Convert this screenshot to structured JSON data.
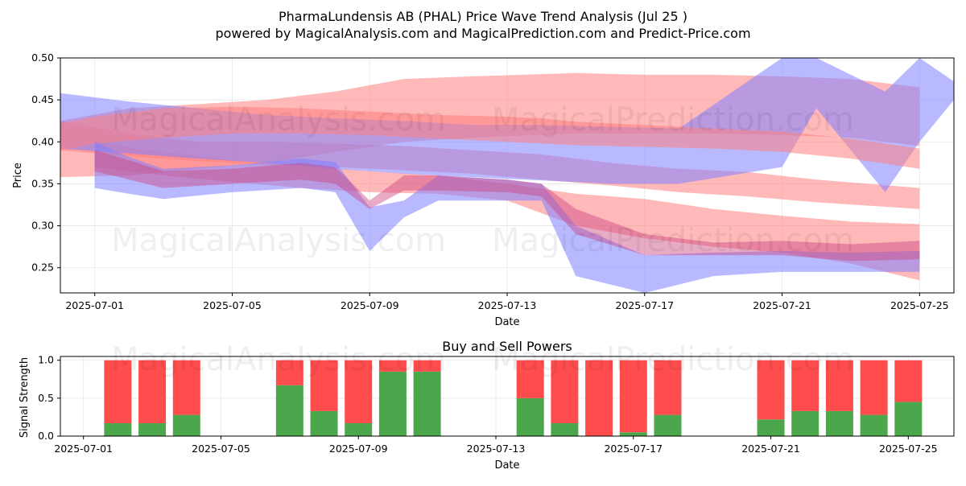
{
  "header": {
    "title": "PharmaLundensis AB (PHAL) Price Wave Trend Analysis (Jul 25 )",
    "subtitle": "powered by MagicalAnalysis.com and MagicalPrediction.com and Predict-Price.com"
  },
  "watermarks": [
    "MagicalAnalysis.com",
    "MagicalPrediction.com"
  ],
  "colors": {
    "buy": "#4ca64c",
    "sell": "#ff4d4d",
    "wave_red": "#ff8080",
    "wave_blue": "#7f7fff"
  },
  "chart_data": [
    {
      "type": "area",
      "title": "",
      "xlabel": "Date",
      "ylabel": "Price",
      "x_ticks": [
        "2025-07-01",
        "2025-07-05",
        "2025-07-09",
        "2025-07-13",
        "2025-07-17",
        "2025-07-21",
        "2025-07-25"
      ],
      "y_ticks": [
        "0.25",
        "0.30",
        "0.35",
        "0.40",
        "0.45",
        "0.50"
      ],
      "xlim": [
        "2025-06-30",
        "2025-07-26"
      ],
      "ylim": [
        0.22,
        0.5
      ],
      "grid": true,
      "series": [
        {
          "color": "#ff8080",
          "upper": [
            0.425,
            0.41,
            0.4,
            0.4,
            0.398,
            0.395,
            0.39,
            0.385,
            0.375,
            0.368,
            0.364,
            0.355,
            0.345
          ],
          "lower": [
            0.39,
            0.383,
            0.377,
            0.373,
            0.37,
            0.366,
            0.362,
            0.355,
            0.348,
            0.34,
            0.335,
            0.328,
            0.32
          ],
          "x": [
            "2025-06-30",
            "2025-07-02",
            "2025-07-04",
            "2025-07-06",
            "2025-07-08",
            "2025-07-10",
            "2025-07-12",
            "2025-07-14",
            "2025-07-16",
            "2025-07-18",
            "2025-07-20",
            "2025-07-22",
            "2025-07-25"
          ]
        },
        {
          "color": "#ff8080",
          "upper": [
            0.425,
            0.44,
            0.445,
            0.45,
            0.46,
            0.475,
            0.478,
            0.482,
            0.48,
            0.48,
            0.478,
            0.475,
            0.465
          ],
          "lower": [
            0.358,
            0.36,
            0.368,
            0.375,
            0.388,
            0.4,
            0.405,
            0.41,
            0.41,
            0.41,
            0.408,
            0.405,
            0.395
          ],
          "x": [
            "2025-06-30",
            "2025-07-02",
            "2025-07-04",
            "2025-07-06",
            "2025-07-08",
            "2025-07-10",
            "2025-07-12",
            "2025-07-15",
            "2025-07-17",
            "2025-07-19",
            "2025-07-21",
            "2025-07-23",
            "2025-07-25"
          ]
        },
        {
          "color": "#ff8080",
          "upper": [
            0.4,
            0.388,
            0.378,
            0.372,
            0.365,
            0.36,
            0.35,
            0.338,
            0.332,
            0.32,
            0.312,
            0.305,
            0.302
          ],
          "lower": [
            0.37,
            0.36,
            0.352,
            0.345,
            0.34,
            0.338,
            0.33,
            0.3,
            0.285,
            0.275,
            0.268,
            0.255,
            0.235
          ],
          "x": [
            "2025-07-01",
            "2025-07-03",
            "2025-07-05",
            "2025-07-07",
            "2025-07-09",
            "2025-07-11",
            "2025-07-13",
            "2025-07-15",
            "2025-07-17",
            "2025-07-19",
            "2025-07-21",
            "2025-07-23",
            "2025-07-25"
          ]
        },
        {
          "color": "#7f7fff",
          "upper": [
            0.458,
            0.448,
            0.44,
            0.432,
            0.428,
            0.425,
            0.42,
            0.42,
            0.418,
            0.416,
            0.5,
            0.5,
            0.46,
            0.5,
            0.472
          ],
          "lower": [
            0.392,
            0.386,
            0.38,
            0.375,
            0.368,
            0.362,
            0.358,
            0.354,
            0.35,
            0.35,
            0.37,
            0.44,
            0.34,
            0.4,
            0.45
          ],
          "x": [
            "2025-06-30",
            "2025-07-02",
            "2025-07-04",
            "2025-07-06",
            "2025-07-08",
            "2025-07-10",
            "2025-07-12",
            "2025-07-14",
            "2025-07-16",
            "2025-07-18",
            "2025-07-21",
            "2025-07-22",
            "2025-07-24",
            "2025-07-25",
            "2025-07-26"
          ]
        },
        {
          "color": "#ff8080",
          "upper": [
            0.422,
            0.43,
            0.44,
            0.442,
            0.44,
            0.436,
            0.432,
            0.43,
            0.428,
            0.424,
            0.42,
            0.416,
            0.412,
            0.408,
            0.404,
            0.398,
            0.392
          ],
          "lower": [
            0.39,
            0.398,
            0.405,
            0.41,
            0.41,
            0.408,
            0.404,
            0.4,
            0.398,
            0.396,
            0.394,
            0.392,
            0.388,
            0.384,
            0.38,
            0.374,
            0.368
          ],
          "x": [
            "2025-06-30",
            "2025-07-01",
            "2025-07-03",
            "2025-07-05",
            "2025-07-07",
            "2025-07-09",
            "2025-07-11",
            "2025-07-13",
            "2025-07-14",
            "2025-07-15",
            "2025-07-17",
            "2025-07-19",
            "2025-07-21",
            "2025-07-22",
            "2025-07-23",
            "2025-07-24",
            "2025-07-25"
          ]
        },
        {
          "color": "#7f7fff",
          "upper": [
            0.4,
            0.382,
            0.368,
            0.372,
            0.38,
            0.376,
            0.322,
            0.33,
            0.36,
            0.355,
            0.35,
            0.3,
            0.265,
            0.268,
            0.27,
            0.268,
            0.27
          ],
          "lower": [
            0.345,
            0.338,
            0.332,
            0.34,
            0.345,
            0.34,
            0.27,
            0.31,
            0.33,
            0.33,
            0.33,
            0.24,
            0.218,
            0.24,
            0.245,
            0.245,
            0.245
          ],
          "x": [
            "2025-07-01",
            "2025-07-02",
            "2025-07-03",
            "2025-07-05",
            "2025-07-07",
            "2025-07-08",
            "2025-07-09",
            "2025-07-10",
            "2025-07-11",
            "2025-07-13",
            "2025-07-14",
            "2025-07-15",
            "2025-07-17",
            "2025-07-19",
            "2025-07-21",
            "2025-07-23",
            "2025-07-25"
          ]
        },
        {
          "color": "#cc4480",
          "upper": [
            0.39,
            0.378,
            0.365,
            0.368,
            0.375,
            0.37,
            0.33,
            0.36,
            0.36,
            0.355,
            0.35,
            0.32,
            0.29,
            0.28,
            0.282,
            0.278,
            0.282
          ],
          "lower": [
            0.365,
            0.355,
            0.345,
            0.35,
            0.355,
            0.35,
            0.32,
            0.342,
            0.342,
            0.34,
            0.335,
            0.29,
            0.265,
            0.265,
            0.265,
            0.258,
            0.26
          ],
          "x": [
            "2025-07-01",
            "2025-07-02",
            "2025-07-03",
            "2025-07-05",
            "2025-07-07",
            "2025-07-08",
            "2025-07-09",
            "2025-07-10",
            "2025-07-11",
            "2025-07-13",
            "2025-07-14",
            "2025-07-15",
            "2025-07-17",
            "2025-07-19",
            "2025-07-21",
            "2025-07-23",
            "2025-07-25"
          ]
        }
      ]
    },
    {
      "type": "bar",
      "title": "Buy and Sell Powers",
      "xlabel": "Date",
      "ylabel": "Signal Strength",
      "x_ticks": [
        "2025-07-01",
        "2025-07-05",
        "2025-07-09",
        "2025-07-13",
        "2025-07-17",
        "2025-07-21",
        "2025-07-25"
      ],
      "y_ticks": [
        "0.0",
        "0.5",
        "1.0"
      ],
      "xlim": [
        "2025-06-30",
        "2025-07-26"
      ],
      "ylim": [
        0,
        1.05
      ],
      "grid": true,
      "series": [
        {
          "name": "Buy",
          "color": "#4ca64c"
        },
        {
          "name": "Sell",
          "color": "#ff4d4d"
        }
      ],
      "dates": [
        "2025-07-02",
        "2025-07-03",
        "2025-07-04",
        "2025-07-07",
        "2025-07-08",
        "2025-07-09",
        "2025-07-10",
        "2025-07-11",
        "2025-07-14",
        "2025-07-15",
        "2025-07-16",
        "2025-07-17",
        "2025-07-18",
        "2025-07-21",
        "2025-07-22",
        "2025-07-23",
        "2025-07-24",
        "2025-07-25"
      ],
      "buy": [
        0.17,
        0.17,
        0.28,
        0.67,
        0.33,
        0.17,
        0.85,
        0.85,
        0.5,
        0.17,
        0.0,
        0.05,
        0.28,
        0.22,
        0.33,
        0.33,
        0.28,
        0.45
      ],
      "sell": [
        0.83,
        0.83,
        0.72,
        0.33,
        0.67,
        0.83,
        0.15,
        0.15,
        0.5,
        0.83,
        1.0,
        0.95,
        0.72,
        0.78,
        0.67,
        0.67,
        0.72,
        0.55
      ]
    }
  ]
}
